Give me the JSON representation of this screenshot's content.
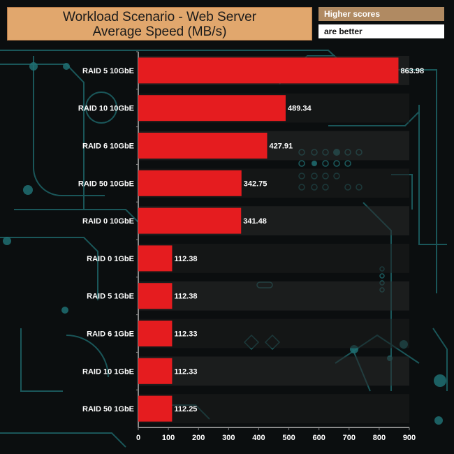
{
  "header": {
    "title_line1": "Workload Scenario - Web Server",
    "title_line2": "Average Speed (MB/s)",
    "note_line1": "Higher scores",
    "note_line2": "are better"
  },
  "colors": {
    "bar": "#e51c1f",
    "title_bg": "#e1a76d",
    "note_bg": "#b08a62",
    "axis": "#8a8a8a",
    "text": "#ffffff",
    "circuit": "#1f6f72"
  },
  "chart_data": {
    "type": "bar",
    "orientation": "horizontal",
    "title": "Workload Scenario - Web Server Average Speed (MB/s)",
    "categories": [
      "RAID 5 10GbE",
      "RAID 10 10GbE",
      "RAID 6 10GbE",
      "RAID 50 10GbE",
      "RAID 0 10GbE",
      "RAID 0 1GbE",
      "RAID 5 1GbE",
      "RAID 6 1GbE",
      "RAID 10 1GbE",
      "RAID 50 1GbE"
    ],
    "values": [
      863.98,
      489.34,
      427.91,
      342.75,
      341.48,
      112.38,
      112.38,
      112.33,
      112.33,
      112.25
    ],
    "value_labels": [
      "863.98",
      "489.34",
      "427.91",
      "342.75",
      "341.48",
      "112.38",
      "112.38",
      "112.33",
      "112.33",
      "112.25"
    ],
    "xlim": [
      0,
      900
    ],
    "xticks": [
      "0",
      "100",
      "200",
      "300",
      "400",
      "500",
      "600",
      "700",
      "800",
      "900"
    ],
    "grid": false,
    "legend": "none"
  }
}
